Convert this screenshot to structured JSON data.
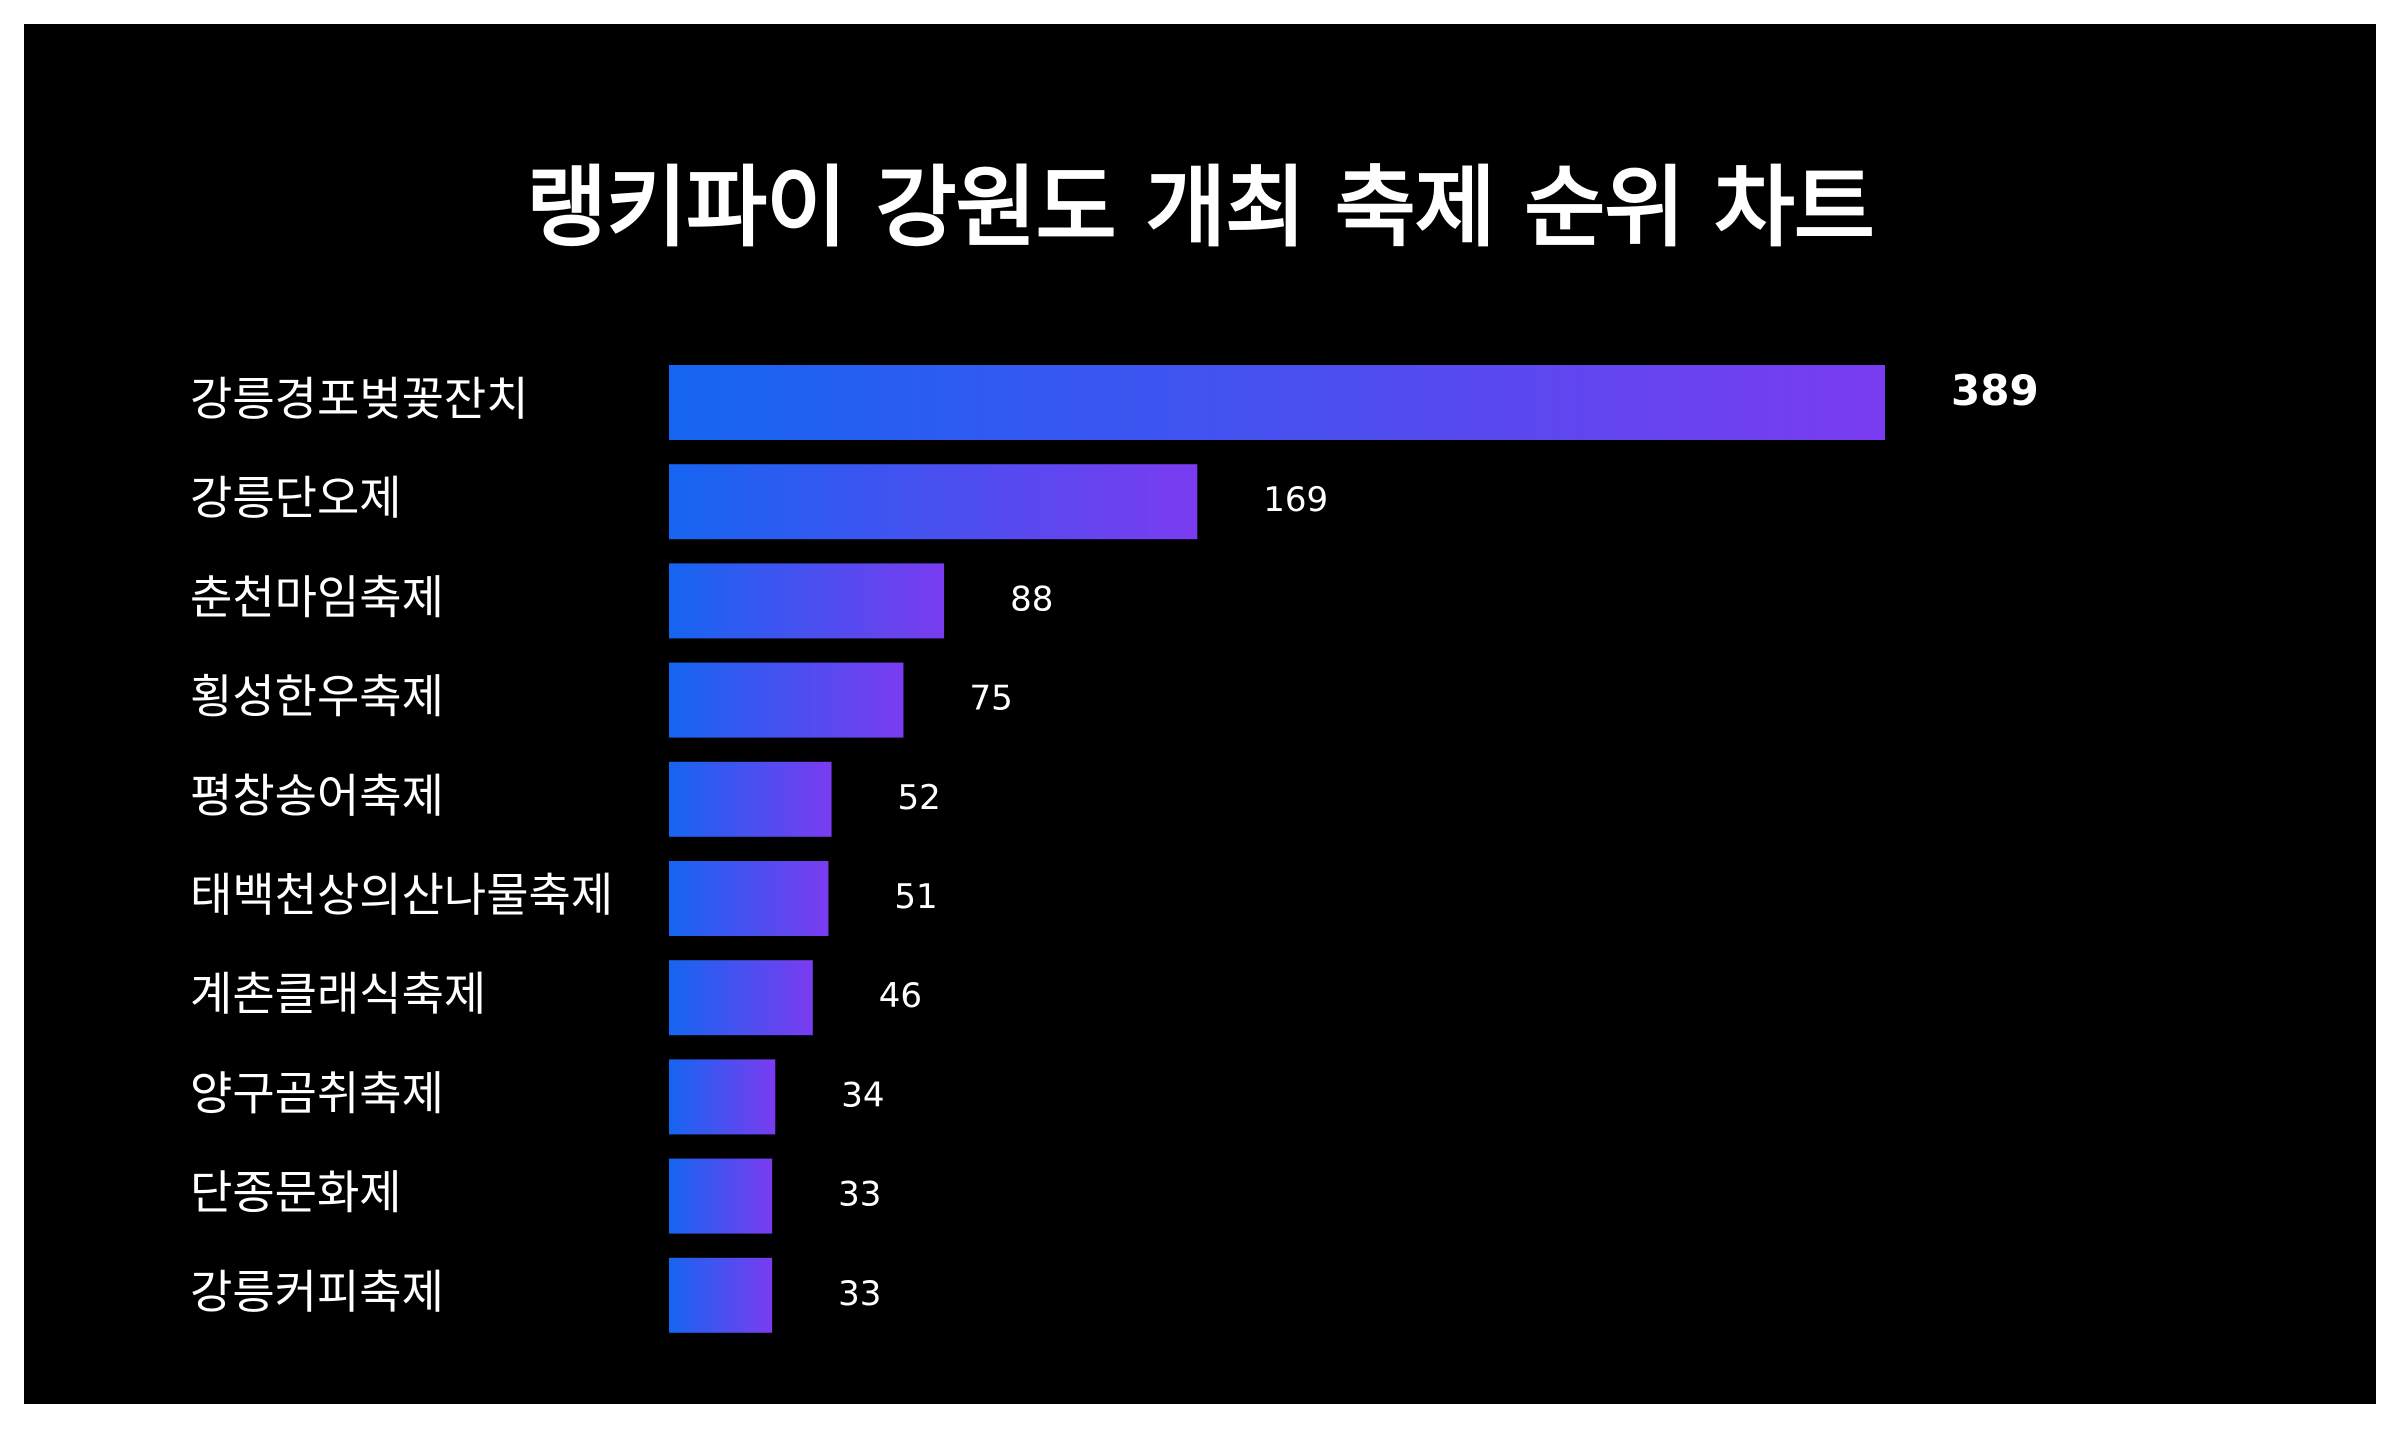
{
  "chart_data": {
    "type": "bar",
    "orientation": "horizontal",
    "title": "랭키파이 강원도 개최 축제 순위 차트",
    "categories": [
      "강릉경포벚꽃잔치",
      "강릉단오제",
      "춘천마임축제",
      "횡성한우축제",
      "평창송어축제",
      "태백천상의산나물축제",
      "계촌클래식축제",
      "양구곰취축제",
      "단종문화제",
      "강릉커피축제"
    ],
    "values": [
      389,
      169,
      88,
      75,
      52,
      51,
      46,
      34,
      33,
      33
    ],
    "xlim": [
      0,
      389
    ],
    "grid": false,
    "legend": "none",
    "colors": {
      "background": "#000000",
      "page": "#ffffff",
      "text": "#ffffff",
      "bar_gradient_start": "#1565f0",
      "bar_gradient_end": "#7a3cf0"
    }
  }
}
